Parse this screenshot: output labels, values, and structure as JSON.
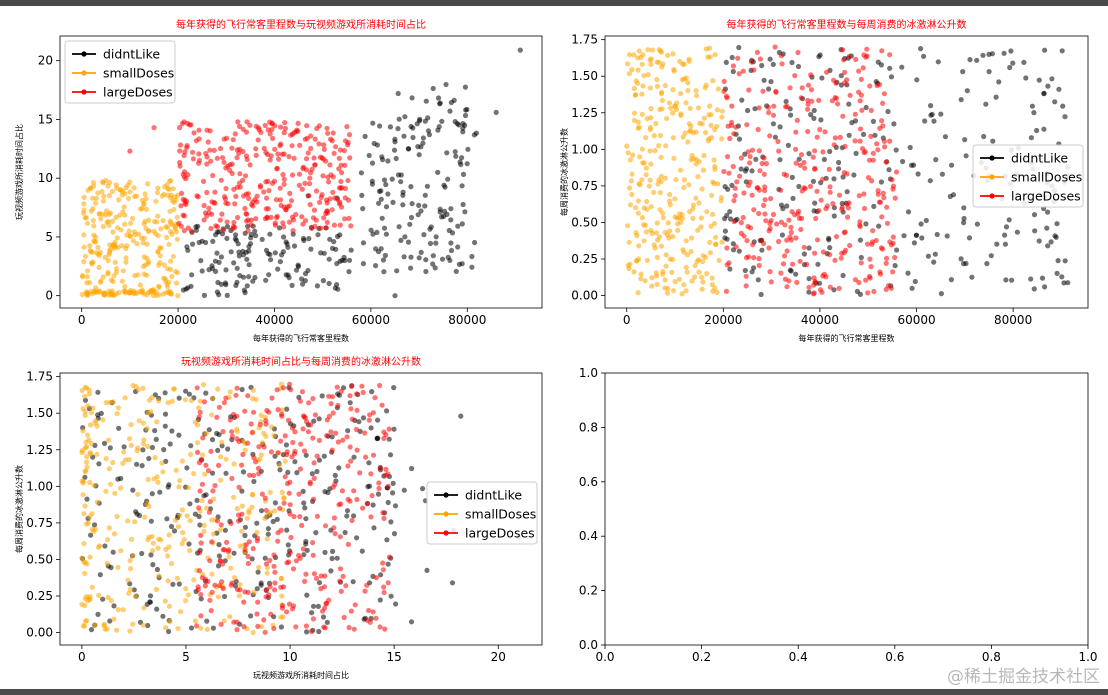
{
  "watermark": "@稀土掘金技术社区",
  "series_colors": {
    "didntLike": "#000000",
    "smallDoses": "#ffa500",
    "largeDoses": "#ff0000"
  },
  "chart_data": [
    {
      "type": "scatter",
      "title": "每年获得的飞行常客里程数与玩视频游戏所消耗时间占比",
      "xlabel": "每年获得的飞行常客里程数",
      "ylabel": "玩视频游戏所消耗时间占比",
      "xlim": [
        -4500,
        95500
      ],
      "ylim": [
        -1.05,
        22.1
      ],
      "xticks": [
        0,
        20000,
        40000,
        60000,
        80000
      ],
      "yticks": [
        0,
        5,
        10,
        15,
        20
      ],
      "legend": "top-left",
      "series": [
        {
          "name": "didntLike",
          "regions": [
            {
              "x": [
                21000,
                56000
              ],
              "y": [
                0,
                6
              ],
              "n": 140
            },
            {
              "x": [
                58000,
                82000
              ],
              "y": [
                2,
                15
              ],
              "n": 140
            },
            {
              "x": [
                64000,
                80000
              ],
              "y": [
                12,
                18
              ],
              "n": 30
            }
          ],
          "extra": [
            [
              91000,
              20.9
            ],
            [
              86000,
              15.6
            ],
            [
              65000,
              0
            ],
            [
              47000,
              8.5
            ],
            [
              53000,
              8.3
            ]
          ]
        },
        {
          "name": "smallDoses",
          "regions": [
            {
              "x": [
                0,
                20000
              ],
              "y": [
                0,
                9.8
              ],
              "n": 260
            },
            {
              "x": [
                0,
                20000
              ],
              "y": [
                0,
                0.4
              ],
              "n": 50
            }
          ],
          "extra": [
            [
              5000,
              9.8
            ],
            [
              2000,
              7.2
            ]
          ]
        },
        {
          "name": "largeDoses",
          "regions": [
            {
              "x": [
                20000,
                56000
              ],
              "y": [
                5.5,
                14.8
              ],
              "n": 330
            }
          ],
          "extra": [
            [
              15000,
              14.3
            ],
            [
              10000,
              12.3
            ]
          ]
        }
      ]
    },
    {
      "type": "scatter",
      "title": "每年获得的飞行常客里程数与每周消费的冰激淋公升数",
      "xlabel": "每年获得的飞行常客里程数",
      "ylabel": "每周消费的冰激淋公升数",
      "xlim": [
        -4500,
        95500
      ],
      "ylim": [
        -0.085,
        1.775
      ],
      "xticks": [
        0,
        20000,
        40000,
        60000,
        80000
      ],
      "yticks": [
        0.0,
        0.25,
        0.5,
        0.75,
        1.0,
        1.25,
        1.5,
        1.75
      ],
      "legend": "center-right",
      "series": [
        {
          "name": "didntLike",
          "regions": [
            {
              "x": [
                20000,
                92000
              ],
              "y": [
                0,
                1.7
              ],
              "n": 310
            }
          ]
        },
        {
          "name": "smallDoses",
          "regions": [
            {
              "x": [
                0,
                20000
              ],
              "y": [
                0,
                1.7
              ],
              "n": 310
            }
          ]
        },
        {
          "name": "largeDoses",
          "regions": [
            {
              "x": [
                20000,
                56000
              ],
              "y": [
                0,
                1.7
              ],
              "n": 330
            }
          ]
        }
      ]
    },
    {
      "type": "scatter",
      "title": "玩视频游戏所消耗时间占比与每周消费的冰激淋公升数",
      "xlabel": "玩视频游戏所消耗时间占比",
      "ylabel": "每周消费的冰激淋公升数",
      "xlim": [
        -1.05,
        22.1
      ],
      "ylim": [
        -0.085,
        1.775
      ],
      "xticks": [
        0,
        5,
        10,
        15,
        20
      ],
      "yticks": [
        0.0,
        0.25,
        0.5,
        0.75,
        1.0,
        1.25,
        1.5,
        1.75
      ],
      "legend": "center-right",
      "series": [
        {
          "name": "didntLike",
          "regions": [
            {
              "x": [
                0,
                15
              ],
              "y": [
                0,
                1.7
              ],
              "n": 300
            },
            {
              "x": [
                12,
                18
              ],
              "y": [
                0,
                1.2
              ],
              "n": 20
            }
          ],
          "extra": [
            [
              21,
              0.65
            ],
            [
              18.2,
              1.48
            ],
            [
              17.8,
              0.34
            ]
          ]
        },
        {
          "name": "smallDoses",
          "regions": [
            {
              "x": [
                0,
                9.8
              ],
              "y": [
                0,
                1.7
              ],
              "n": 280
            },
            {
              "x": [
                0,
                0.4
              ],
              "y": [
                0,
                1.7
              ],
              "n": 40
            }
          ]
        },
        {
          "name": "largeDoses",
          "regions": [
            {
              "x": [
                5.5,
                14.8
              ],
              "y": [
                0,
                1.7
              ],
              "n": 330
            }
          ]
        }
      ]
    },
    {
      "type": "scatter",
      "title": "",
      "xlabel": "",
      "ylabel": "",
      "xlim": [
        0,
        1
      ],
      "ylim": [
        0,
        1
      ],
      "xticks": [
        0.0,
        0.2,
        0.4,
        0.6,
        0.8,
        1.0
      ],
      "yticks": [
        0.0,
        0.2,
        0.4,
        0.6,
        0.8,
        1.0
      ],
      "legend": "",
      "series": []
    }
  ]
}
